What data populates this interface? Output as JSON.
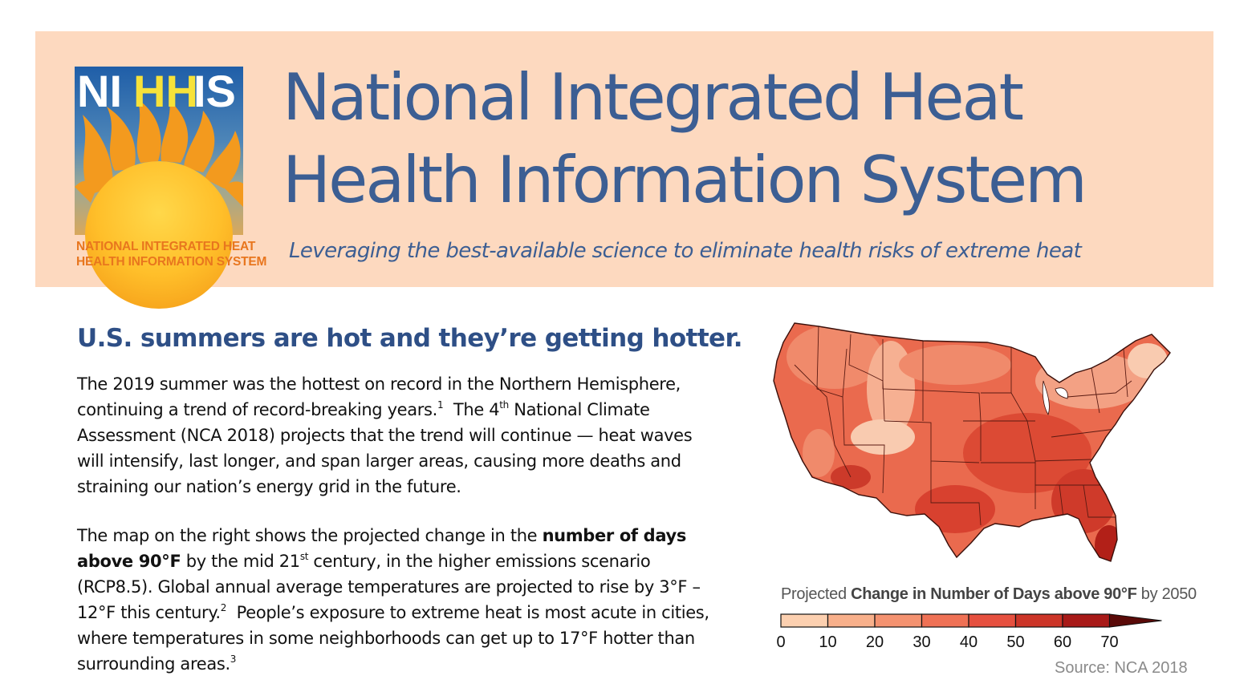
{
  "header": {
    "logo": {
      "letters": [
        "NI",
        "HH",
        "IS"
      ],
      "caption_lines": [
        "NATIONAL INTEGRATED HEAT",
        "HEALTH INFORMATION SYSTEM"
      ]
    },
    "title_lines": [
      "National Integrated Heat",
      "Health Information System"
    ],
    "tagline": "Leveraging the best-available science to eliminate health risks of extreme heat"
  },
  "main": {
    "heading": "U.S. summers are hot and they’re getting hotter.",
    "paragraph1": {
      "l1": "The 2019 summer was the hottest on record in the Northern Hemisphere,",
      "l2a": "continuing a trend of record-breaking years.",
      "l2sup1": "1",
      "l2b": "  The 4",
      "l2sup2": "th",
      "l2c": " National Climate",
      "l3": "Assessment (NCA 2018) projects that the trend will continue — heat waves",
      "l4": "will intensify, last longer, and span larger areas, causing more deaths and",
      "l5": "straining our nation’s energy grid in the future."
    },
    "paragraph2": {
      "l1a": "The map on the right shows the projected change in the ",
      "l1b": "number of days",
      "l2a": "above 90°F",
      "l2b": " by the mid 21",
      "l2sup": "st",
      "l2c": " century, in the higher emissions scenario",
      "l3": "(RCP8.5).  Global annual average temperatures are projected to rise by 3°F –",
      "l4a": "12°F this century.",
      "l4sup": "2",
      "l4b": "  People’s exposure to extreme heat is most acute in cities,",
      "l5": "where temperatures in some neighborhoods can get up to 17°F hotter than",
      "l6a": "surrounding areas.",
      "l6sup": "3"
    }
  },
  "figure": {
    "legend_title_prefix": "Projected ",
    "legend_title_bold": "Change in Number of Days above 90°F",
    "legend_title_suffix": " by 2050",
    "colorbar_ticks": [
      "0",
      "10",
      "20",
      "30",
      "40",
      "50",
      "60",
      "70"
    ],
    "colorbar_colors": [
      "#fcd0b0",
      "#f8b08b",
      "#f49270",
      "#ef7155",
      "#e6503f",
      "#cc3528",
      "#a81a18"
    ],
    "source": "Source: NCA 2018"
  },
  "colors": {
    "banner": "#fdd9bf",
    "title": "#3c5e93",
    "heading": "#2e4f86",
    "logo_caption": "#e8761e"
  }
}
